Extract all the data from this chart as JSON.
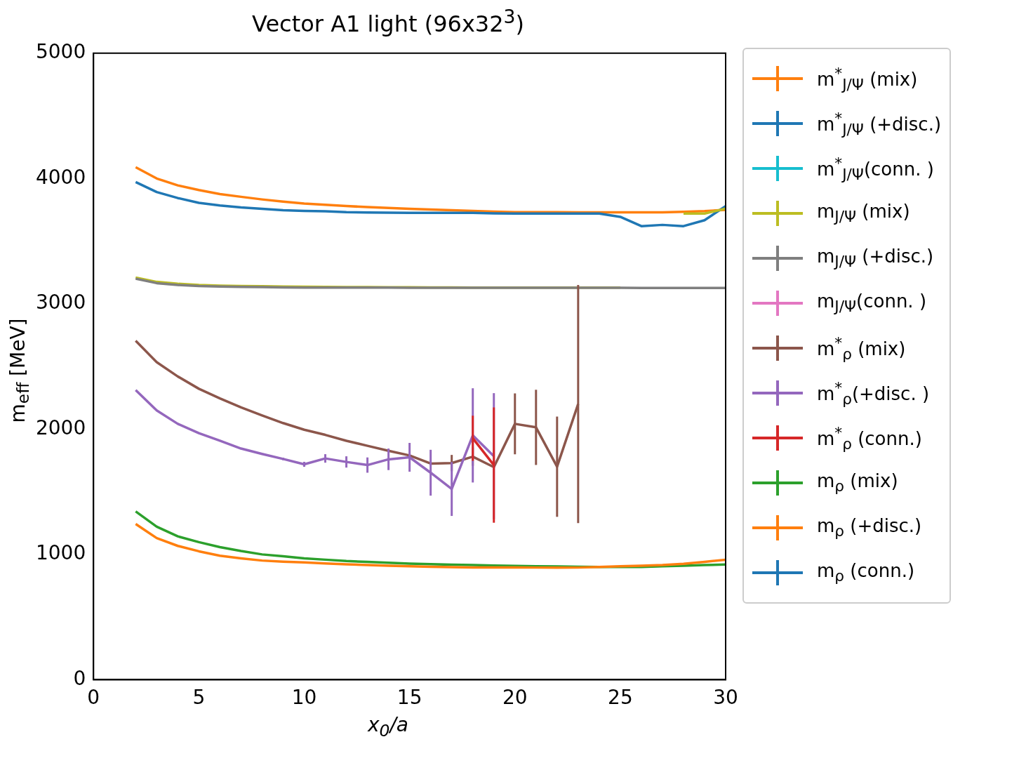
{
  "chart_data": {
    "type": "line",
    "title": "Vector A1 light (96x32$^{3}$)",
    "xlabel": "x$_{0}$/a",
    "ylabel": "m$_{eff}$ [MeV]",
    "x": [
      2,
      3,
      4,
      5,
      6,
      7,
      8,
      9,
      10,
      11,
      12,
      13,
      14,
      15,
      16,
      17,
      18,
      19,
      20,
      21,
      22,
      23,
      24,
      25,
      26,
      27,
      28,
      29,
      30
    ],
    "xlim": [
      0,
      30
    ],
    "xticks": [
      0,
      5,
      10,
      15,
      20,
      25,
      30
    ],
    "ylim": [
      0,
      5000
    ],
    "yticks": [
      0,
      1000,
      2000,
      3000,
      4000,
      5000
    ],
    "legend": "top right",
    "series": [
      {
        "name": "m$^{*}$$_{J/Ψ}$ (mix)",
        "color": "#ff7f0e",
        "values": [
          4090,
          4000,
          3945,
          3908,
          3876,
          3854,
          3833,
          3815,
          3800,
          3790,
          3780,
          3772,
          3765,
          3758,
          3752,
          3747,
          3742,
          3736,
          3731,
          3731,
          3731,
          3730,
          3730,
          3730,
          3730,
          3730,
          3735,
          3740,
          3750
        ]
      },
      {
        "name": "m$^{*}$$_{J/Ψ}$ (+disc.)",
        "color": "#1f77b4",
        "values": [
          3972,
          3892,
          3844,
          3806,
          3785,
          3769,
          3758,
          3747,
          3742,
          3738,
          3731,
          3729,
          3727,
          3726,
          3726,
          3726,
          3726,
          3722,
          3720,
          3720,
          3720,
          3720,
          3720,
          3694,
          3620,
          3630,
          3620,
          3667,
          3780
        ]
      },
      {
        "name": "m$^{*}$$_{J/Ψ}$(conn. )",
        "color": "#17becf",
        "values": [
          null,
          null,
          null,
          null,
          null,
          null,
          null,
          null,
          null,
          null,
          null,
          null,
          null,
          null,
          null,
          null,
          null,
          null,
          null,
          null,
          null,
          null,
          null,
          null,
          null,
          null,
          null,
          null,
          null
        ]
      },
      {
        "name": "m$_{J/Ψ}$ (mix)",
        "color": "#bcbd22",
        "values": [
          3210,
          3175,
          3160,
          3150,
          3145,
          3142,
          3140,
          3138,
          3136,
          3135,
          3134,
          3133,
          3132,
          3132,
          3131,
          3131,
          3130,
          3130,
          3130,
          3130,
          3130,
          3130,
          3130,
          3130,
          null,
          null,
          3720,
          3720,
          3760
        ]
      },
      {
        "name": "m$_{J/Ψ}$ (+disc.)",
        "color": "#7f7f7f",
        "values": [
          3200,
          3165,
          3150,
          3142,
          3138,
          3135,
          3133,
          3131,
          3130,
          3130,
          3130,
          3129,
          3129,
          3128,
          3128,
          3128,
          3128,
          3128,
          3128,
          3128,
          3128,
          3128,
          3128,
          3128,
          3127,
          3127,
          3127,
          3127,
          3126
        ]
      },
      {
        "name": "m$_{J/Ψ}$(conn. )",
        "color": "#e377c2",
        "values": [
          null,
          null,
          null,
          null,
          null,
          null,
          null,
          null,
          null,
          null,
          null,
          null,
          null,
          null,
          null,
          null,
          null,
          null,
          null,
          null,
          null,
          null,
          null,
          null,
          null,
          null,
          null,
          null,
          null
        ]
      },
      {
        "name": "m$^{*}$$_{ρ}$ (mix)",
        "color": "#8c564b",
        "values": [
          2705,
          2534,
          2420,
          2322,
          2245,
          2173,
          2109,
          2048,
          1995,
          1954,
          1907,
          1867,
          1827,
          1790,
          1725,
          1729,
          1780,
          1697,
          2042,
          2014,
          1700,
          2200,
          null,
          null,
          null,
          null,
          null,
          null,
          null
        ],
        "errors": [
          null,
          null,
          null,
          null,
          null,
          null,
          null,
          null,
          null,
          null,
          null,
          null,
          null,
          null,
          null,
          65,
          73,
          null,
          243,
          300,
          400,
          950,
          null,
          null,
          null,
          null,
          null,
          null,
          null
        ]
      },
      {
        "name": "m$^{*}$$_{ρ}$(+disc. )",
        "color": "#9467bd",
        "values": [
          2312,
          2149,
          2042,
          1968,
          1907,
          1845,
          1802,
          1762,
          1719,
          1766,
          1738,
          1713,
          1759,
          1775,
          1652,
          1522,
          1950,
          1784,
          null,
          null,
          null,
          null,
          null,
          null,
          null,
          null,
          null,
          null,
          null
        ],
        "errors": [
          null,
          null,
          null,
          null,
          null,
          null,
          null,
          10,
          20,
          34,
          45,
          61,
          86,
          115,
          183,
          215,
          376,
          503,
          null,
          null,
          null,
          null,
          null,
          null,
          null,
          null,
          null,
          null,
          null
        ]
      },
      {
        "name": "m$^{*}$$_{ρ}$ (conn.)",
        "color": "#d62728",
        "values": [
          null,
          null,
          null,
          null,
          null,
          null,
          null,
          null,
          null,
          null,
          null,
          null,
          null,
          null,
          null,
          null,
          1927,
          1713,
          null,
          null,
          null,
          null,
          null,
          null,
          null,
          null,
          null,
          null,
          null
        ],
        "errors": [
          null,
          null,
          null,
          null,
          null,
          null,
          null,
          null,
          null,
          null,
          null,
          null,
          null,
          null,
          null,
          null,
          180,
          460,
          null,
          null,
          null,
          null,
          null,
          null,
          null,
          null,
          null,
          null,
          null
        ]
      },
      {
        "name": "m$_{ρ}$ (mix)",
        "color": "#2ca02c",
        "values": [
          1343,
          1221,
          1144,
          1098,
          1058,
          1027,
          1000,
          985,
          969,
          958,
          947,
          940,
          933,
          926,
          922,
          918,
          915,
          911,
          908,
          906,
          904,
          902,
          900,
          900,
          900,
          905,
          910,
          915,
          920
        ]
      },
      {
        "name": "m$_{ρ}$ (+disc.)",
        "color": "#ff7f0e",
        "values": [
          1243,
          1130,
          1068,
          1025,
          990,
          969,
          951,
          942,
          936,
          928,
          921,
          915,
          910,
          905,
          901,
          898,
          896,
          896,
          896,
          895,
          894,
          895,
          900,
          905,
          910,
          915,
          925,
          940,
          958
        ]
      },
      {
        "name": "m$_{ρ}$ (conn.)",
        "color": "#1f77b4",
        "values": [
          null,
          null,
          null,
          null,
          null,
          null,
          null,
          null,
          null,
          null,
          null,
          null,
          null,
          null,
          null,
          null,
          null,
          null,
          null,
          null,
          null,
          null,
          null,
          null,
          null,
          null,
          null,
          null,
          null
        ]
      }
    ]
  }
}
